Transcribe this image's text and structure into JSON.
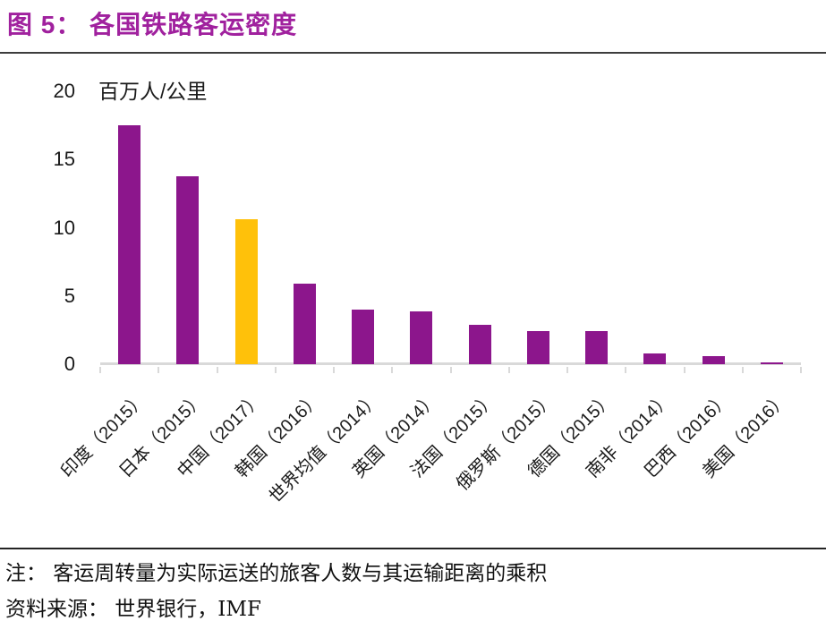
{
  "figure": {
    "title": "图 5： 各国铁路客运密度",
    "note": "注： 客运周转量为实际运送的旅客人数与其运输距离的乘积",
    "source": "资料来源： 世界银行，IMF"
  },
  "chart_data": {
    "type": "bar",
    "title": "各国铁路客运密度",
    "unit_label": "百万人/公里",
    "xlabel": "",
    "ylabel": "百万人/公里",
    "ylim": [
      0,
      20
    ],
    "yticks": [
      0,
      5,
      10,
      15,
      20
    ],
    "grid": false,
    "legend": false,
    "categories": [
      "印度（2015）",
      "日本（2015）",
      "中国（2017）",
      "韩国（2016）",
      "世界均值（2014）",
      "英国（2014）",
      "法国（2015）",
      "俄罗斯（2015）",
      "德国（2015）",
      "南非（2014）",
      "巴西（2016）",
      "美国（2016）"
    ],
    "values": [
      17.5,
      13.8,
      10.6,
      5.9,
      4.0,
      3.9,
      2.9,
      2.4,
      2.4,
      0.8,
      0.6,
      0.15
    ],
    "highlight_index": 2,
    "highlight_category": "中国（2017）",
    "colors": {
      "bar": "#8C168C",
      "highlight_bar": "#FFC10A",
      "title": "#A0219E",
      "axis": "#D9D9D9",
      "text": "#1A1A1A"
    }
  }
}
